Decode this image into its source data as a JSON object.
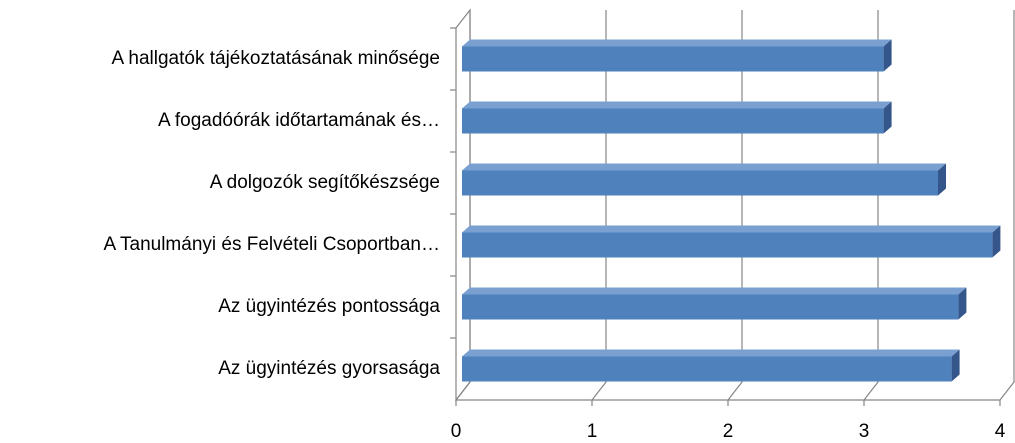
{
  "chart_data": {
    "type": "bar",
    "orientation": "horizontal",
    "three_d": true,
    "categories": [
      "A hallgatók tájékoztatásának minősége",
      "A fogadóórák időtartamának és…",
      "A dolgozók segítőkészsége",
      "A Tanulmányi és Felvételi Csoportban…",
      "Az ügyintézés pontossága",
      "Az ügyintézés gyorsasága"
    ],
    "values": [
      3.1,
      3.1,
      3.5,
      3.9,
      3.65,
      3.6
    ],
    "color": "#4f81bd",
    "xlim": [
      0,
      4
    ],
    "xticks": [
      0,
      1,
      2,
      3,
      4
    ],
    "grid": true
  }
}
